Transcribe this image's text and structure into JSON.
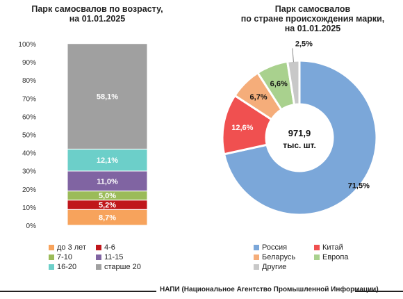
{
  "chart_data": [
    {
      "type": "bar",
      "title": "Парк самосвалов по возрасту,\nна 01.01.2025",
      "stacked": true,
      "yticks": [
        "0%",
        "10%",
        "20%",
        "30%",
        "40%",
        "50%",
        "60%",
        "70%",
        "80%",
        "90%",
        "100%"
      ],
      "ylim": [
        0,
        100
      ],
      "legend_position": "bottom",
      "series": [
        {
          "name": "до 3 лет",
          "value": 8.7,
          "label": "8,7%",
          "color": "#f7a35c"
        },
        {
          "name": "4-6",
          "value": 5.2,
          "label": "5,2%",
          "color": "#c0161b"
        },
        {
          "name": "7-10",
          "value": 5.0,
          "label": "5,0%",
          "color": "#9bbb59"
        },
        {
          "name": "11-15",
          "value": 11.0,
          "label": "11,0%",
          "color": "#8064a2"
        },
        {
          "name": "16-20",
          "value": 12.1,
          "label": "12,1%",
          "color": "#6ccfc9"
        },
        {
          "name": "старше 20",
          "value": 58.1,
          "label": "58,1%",
          "color": "#a0a0a0"
        }
      ]
    },
    {
      "type": "pie",
      "title": "Парк самосвалов\nпо стране происхождения марки,\nна 01.01.2025",
      "center_value": "971,9",
      "center_unit": "тыс. шт.",
      "legend_position": "bottom",
      "slices": [
        {
          "name": "Россия",
          "value": 71.5,
          "label": "71,5%",
          "color": "#7ba7d9"
        },
        {
          "name": "Китай",
          "value": 12.6,
          "label": "12,6%",
          "color": "#f05050"
        },
        {
          "name": "Беларусь",
          "value": 6.7,
          "label": "6,7%",
          "color": "#f5ad7a"
        },
        {
          "name": "Европа",
          "value": 6.6,
          "label": "6,6%",
          "color": "#a9d18e"
        },
        {
          "name": "Другие",
          "value": 2.5,
          "label": "2,5%",
          "color": "#c8c8c8"
        }
      ]
    }
  ],
  "footer": "НАПИ (Национальное Агентство Промышленной Информации)"
}
